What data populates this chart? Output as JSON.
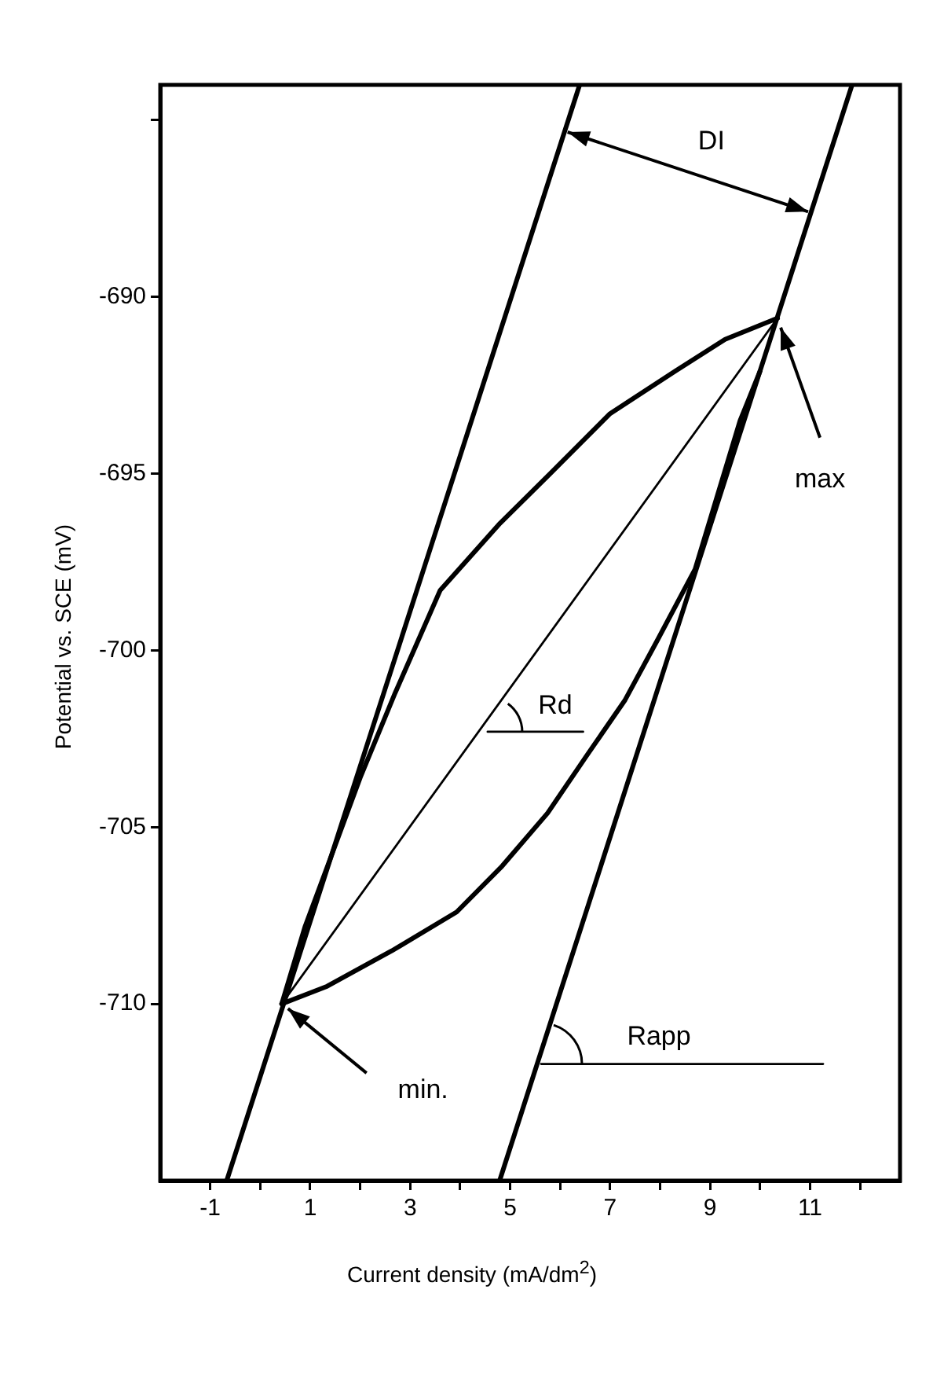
{
  "chart_data": {
    "type": "line",
    "xlabel": "Current density (mA/dm$^{2}$)",
    "ylabel": "Potential vs. SCE (mV)",
    "xlim": [
      -2,
      12.8
    ],
    "ylim": [
      -715,
      -684
    ],
    "xticks": [
      -1,
      {
        "value": 0,
        "label": null
      },
      1,
      {
        "value": 2,
        "label": null
      },
      3,
      {
        "value": 4,
        "label": null
      },
      5,
      {
        "value": 6,
        "label": null
      },
      7,
      {
        "value": 8,
        "label": null
      },
      9,
      {
        "value": 10,
        "label": null
      },
      11,
      {
        "value": 12,
        "label": null
      }
    ],
    "yticks": [
      -710,
      -705,
      -700,
      -695,
      -690,
      {
        "value": -685,
        "label": null
      }
    ],
    "grid": false,
    "legend": false,
    "marker": "none",
    "line_style": "solid",
    "series": [
      {
        "color": "#000000",
        "x": [
          -0.67,
          6.39
        ],
        "values": [
          -715,
          -684
        ]
      },
      {
        "color": "#000000",
        "x": [
          4.79,
          11.84
        ],
        "values": [
          -715,
          -684
        ]
      },
      {
        "color": "#000000",
        "x": [
          0.43,
          10.35
        ],
        "values": [
          -710,
          -690.6
        ]
      },
      {
        "color": "#000000",
        "x": [
          0.43,
          0.9,
          1.4,
          2.0,
          2.7,
          3.6,
          4.8,
          5.8,
          7.0,
          8.3,
          9.3,
          10.35
        ],
        "values": [
          -710,
          -707.8,
          -705.9,
          -703.6,
          -701.2,
          -698.3,
          -696.4,
          -695.0,
          -693.3,
          -692.1,
          -691.2,
          -690.6
        ]
      },
      {
        "color": "#000000",
        "x": [
          0.43,
          1.34,
          2.63,
          3.93,
          4.84,
          5.75,
          6.52,
          7.3,
          7.95,
          8.7,
          9.6,
          10.0
        ],
        "values": [
          -710,
          -709.5,
          -708.5,
          -707.4,
          -706.1,
          -704.6,
          -703.0,
          -701.4,
          -699.7,
          -697.7,
          -693.5,
          -692.1
        ]
      },
      {
        "color": "#000000",
        "x": [
          4.55,
          6.46
        ],
        "values": [
          -702.3,
          -702.3
        ]
      },
      {
        "color": "#000000",
        "x": [
          5.62,
          11.26
        ],
        "values": [
          -711.7,
          -711.7
        ]
      }
    ],
    "annotations": [
      "DI",
      {
        "text": "max",
        "x": 10.35,
        "y": -690.6
      },
      {
        "text": "min.",
        "x": 0.43,
        "y": -710
      },
      "Rd",
      "Rapp"
    ]
  }
}
